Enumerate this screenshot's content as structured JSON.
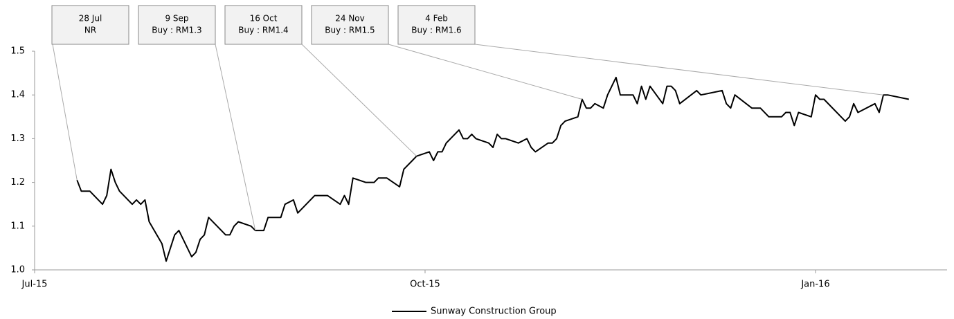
{
  "chart_data": {
    "type": "line",
    "x": [
      10,
      11,
      13,
      16,
      17,
      18,
      19,
      20,
      23,
      24,
      25,
      26,
      27,
      30,
      31,
      33,
      34,
      37,
      38,
      39,
      40,
      41,
      45,
      46,
      47,
      48,
      51,
      52,
      54,
      55,
      58,
      59,
      61,
      62,
      66,
      69,
      72,
      73,
      74,
      75,
      78,
      80,
      81,
      83,
      86,
      87,
      89,
      90,
      93,
      94,
      95,
      96,
      97,
      100,
      101,
      102,
      103,
      104,
      107,
      108,
      109,
      110,
      111,
      114,
      116,
      117,
      118,
      121,
      122,
      123,
      124,
      125,
      128,
      129,
      130,
      131,
      132,
      134,
      135,
      137,
      138,
      141,
      142,
      143,
      144,
      145,
      148,
      149,
      150,
      151,
      152,
      156,
      157,
      162,
      163,
      164,
      165,
      169,
      171,
      173,
      176,
      177,
      178,
      179,
      180,
      183,
      184,
      185,
      186,
      191,
      192,
      193,
      194,
      198,
      199,
      200,
      201,
      206
    ],
    "series": [
      {
        "name": "Sunway Construction Group",
        "color": "#000000",
        "values": [
          1.205,
          1.18,
          1.18,
          1.15,
          1.17,
          1.23,
          1.2,
          1.18,
          1.15,
          1.16,
          1.15,
          1.16,
          1.11,
          1.06,
          1.02,
          1.08,
          1.09,
          1.03,
          1.04,
          1.07,
          1.08,
          1.12,
          1.08,
          1.08,
          1.1,
          1.11,
          1.1,
          1.09,
          1.09,
          1.12,
          1.12,
          1.15,
          1.16,
          1.13,
          1.17,
          1.17,
          1.15,
          1.17,
          1.15,
          1.21,
          1.2,
          1.2,
          1.21,
          1.21,
          1.19,
          1.23,
          1.25,
          1.26,
          1.27,
          1.25,
          1.27,
          1.27,
          1.29,
          1.32,
          1.3,
          1.3,
          1.31,
          1.3,
          1.29,
          1.28,
          1.31,
          1.3,
          1.3,
          1.29,
          1.3,
          1.28,
          1.27,
          1.29,
          1.29,
          1.3,
          1.33,
          1.34,
          1.35,
          1.39,
          1.37,
          1.37,
          1.38,
          1.37,
          1.4,
          1.44,
          1.4,
          1.4,
          1.38,
          1.42,
          1.39,
          1.42,
          1.38,
          1.42,
          1.42,
          1.41,
          1.38,
          1.41,
          1.4,
          1.41,
          1.38,
          1.37,
          1.4,
          1.37,
          1.37,
          1.35,
          1.35,
          1.36,
          1.36,
          1.33,
          1.36,
          1.35,
          1.4,
          1.39,
          1.39,
          1.34,
          1.35,
          1.38,
          1.36,
          1.38,
          1.36,
          1.4,
          1.4,
          1.39
        ]
      }
    ],
    "xlim": [
      0,
      215
    ],
    "xticks": [
      {
        "value": 0,
        "label": "Jul-15"
      },
      {
        "value": 92,
        "label": "Oct-15"
      },
      {
        "value": 184,
        "label": "Jan-16"
      }
    ],
    "ylim": [
      1,
      1.5
    ],
    "yticks": [
      {
        "value": 1,
        "label": "1.0"
      },
      1.1,
      1.2,
      1.3,
      1.4,
      1.5
    ],
    "grid": false,
    "legend": "bottom",
    "annotations": [
      {
        "date": "28 Jul",
        "label": "NR",
        "x": 10,
        "y": 1.205
      },
      {
        "date": "9 Sep",
        "label": "Buy : RM1.3",
        "x": 52,
        "y": 1.09
      },
      {
        "date": "16 Oct",
        "label": "Buy : RM1.4",
        "x": 90,
        "y": 1.26
      },
      {
        "date": "24 Nov",
        "label": "Buy : RM1.5",
        "x": 129,
        "y": 1.39
      },
      {
        "date": "4 Feb",
        "label": "Buy : RM1.6",
        "x": 200,
        "y": 1.4
      }
    ]
  }
}
